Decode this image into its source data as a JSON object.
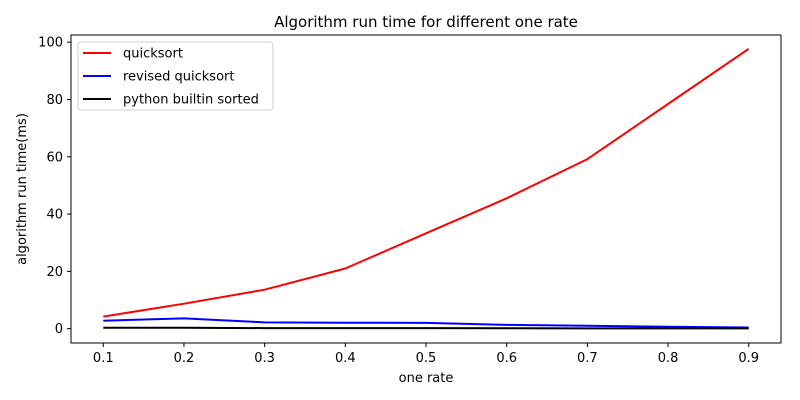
{
  "chart_data": {
    "type": "line",
    "title": "Algorithm run time for different one rate",
    "xlabel": "one rate",
    "ylabel": "algorithm run time(ms)",
    "x": [
      0.1,
      0.2,
      0.3,
      0.4,
      0.5,
      0.6,
      0.7,
      0.8,
      0.9
    ],
    "xlim": [
      0.06,
      0.94
    ],
    "ylim": [
      -5.0,
      102.5
    ],
    "xticks": [
      "0.1",
      "0.2",
      "0.3",
      "0.4",
      "0.5",
      "0.6",
      "0.7",
      "0.8",
      "0.9"
    ],
    "yticks": [
      "0",
      "20",
      "40",
      "60",
      "80",
      "100"
    ],
    "grid": false,
    "legend_position": "top-left",
    "series": [
      {
        "name": "quicksort",
        "color": "#ff0000",
        "values": [
          4.2,
          8.7,
          13.6,
          21.0,
          33.3,
          45.5,
          59.2,
          78.4,
          97.7
        ]
      },
      {
        "name": "revised quicksort",
        "color": "#0000ff",
        "values": [
          2.8,
          3.6,
          2.2,
          2.1,
          2.0,
          1.3,
          1.0,
          0.7,
          0.4
        ]
      },
      {
        "name": "python builtin sorted",
        "color": "#000000",
        "values": [
          0.3,
          0.3,
          0.2,
          0.2,
          0.2,
          0.15,
          0.1,
          0.1,
          0.1
        ]
      }
    ]
  }
}
